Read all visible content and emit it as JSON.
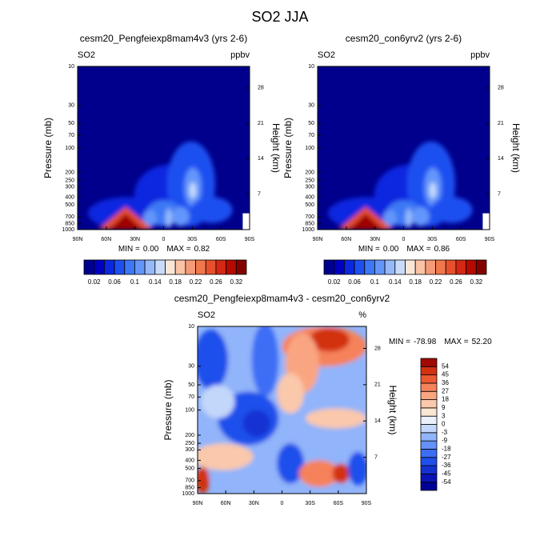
{
  "title": "SO2 JJA",
  "chart_data": [
    {
      "type": "contour",
      "title": "cesm20_Pengfeiexp8mam4v3 (yrs 2-6)",
      "left_label": "SO2",
      "right_label": "ppbv",
      "ylabel": "Pressure (mb)",
      "y2label": "Height (km)",
      "categories": [
        "90N",
        "60N",
        "30N",
        "0",
        "30S",
        "60S",
        "90S"
      ],
      "ylog": true,
      "ylim": [
        1000,
        10
      ],
      "yticks": [
        10,
        30,
        50,
        70,
        100,
        200,
        250,
        300,
        400,
        500,
        700,
        850,
        1000
      ],
      "y2ticks": [
        7,
        14,
        21,
        28
      ],
      "min_label": "MIN =",
      "min": {
        "value": 0,
        "label": "0.00"
      },
      "max_label": "MAX =",
      "max": 0.82,
      "colorbar": {
        "orientation": "horizontal",
        "ticks": [
          0.02,
          0.06,
          0.1,
          0.14,
          0.18,
          0.22,
          0.26,
          0.32
        ],
        "colors": [
          "#00008c",
          "#0000c0",
          "#0a28e0",
          "#1e50f0",
          "#3c78f5",
          "#6496fa",
          "#96b9fa",
          "#c8dcfa",
          "#fae6d7",
          "#fac3a5",
          "#f59b78",
          "#f0784b",
          "#e6502d",
          "#d22814",
          "#b40a00",
          "#820000"
        ]
      }
    },
    {
      "type": "contour",
      "title": "cesm20_con6yrv2 (yrs 2-6)",
      "left_label": "SO2",
      "right_label": "ppbv",
      "ylabel": "Pressure (mb)",
      "y2label": "Height (km)",
      "categories": [
        "90N",
        "60N",
        "30N",
        "0",
        "30S",
        "60S",
        "90S"
      ],
      "ylog": true,
      "ylim": [
        1000,
        10
      ],
      "yticks": [
        10,
        30,
        50,
        70,
        100,
        200,
        250,
        300,
        400,
        500,
        700,
        850,
        1000
      ],
      "y2ticks": [
        7,
        14,
        21,
        28
      ],
      "min_label": "MIN =",
      "min": {
        "value": 0,
        "label": "0.00"
      },
      "max_label": "MAX =",
      "max": 0.86,
      "colorbar": {
        "orientation": "horizontal",
        "ticks": [
          0.02,
          0.06,
          0.1,
          0.14,
          0.18,
          0.22,
          0.26,
          0.32
        ],
        "colors": [
          "#00008c",
          "#0000c0",
          "#0a28e0",
          "#1e50f0",
          "#3c78f5",
          "#6496fa",
          "#96b9fa",
          "#c8dcfa",
          "#fae6d7",
          "#fac3a5",
          "#f59b78",
          "#f0784b",
          "#e6502d",
          "#d22814",
          "#b40a00",
          "#820000"
        ]
      }
    },
    {
      "type": "contour-diff",
      "title": "cesm20_Pengfeiexp8mam4v3 - cesm20_con6yrv2",
      "left_label": "SO2",
      "right_label": "%",
      "ylabel": "Pressure (mb)",
      "y2label": "Height (km)",
      "categories": [
        "90N",
        "60N",
        "30N",
        "0",
        "30S",
        "60S",
        "90S"
      ],
      "ylog": true,
      "ylim": [
        1000,
        10
      ],
      "yticks": [
        10,
        30,
        50,
        70,
        100,
        200,
        250,
        300,
        400,
        500,
        700,
        850,
        1000
      ],
      "y2ticks": [
        7,
        14,
        21,
        28
      ],
      "min_label": "MIN =",
      "min": -78.98,
      "max_label": "MAX =",
      "max": {
        "value": 52.2,
        "label": "52.20"
      },
      "colorbar": {
        "orientation": "vertical",
        "ticks": [
          -54,
          -45,
          -36,
          -27,
          -18,
          -9,
          -3,
          0,
          3,
          9,
          18,
          27,
          36,
          45,
          54
        ],
        "colors": [
          "#000096",
          "#0a14b4",
          "#1432d2",
          "#1e50eb",
          "#3c6ef5",
          "#6491fa",
          "#91b4fa",
          "#c3d7fa",
          "#ebf0fa",
          "#fae6d2",
          "#fac8aa",
          "#faa582",
          "#f5825a",
          "#eb5a32",
          "#d2320f",
          "#a00a00"
        ]
      }
    }
  ]
}
